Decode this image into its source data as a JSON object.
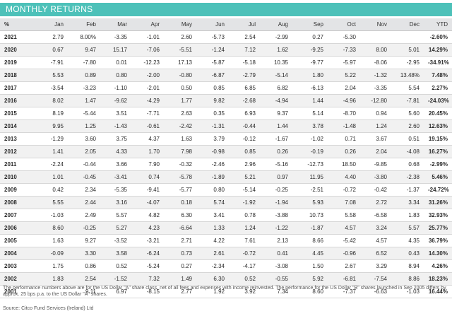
{
  "title": "MONTHLY RETURNS",
  "columns": [
    "%",
    "Jan",
    "Feb",
    "Mar",
    "Apr",
    "May",
    "Jun",
    "Jul",
    "Aug",
    "Sep",
    "Oct",
    "Nov",
    "Dec",
    "YTD"
  ],
  "rows": [
    [
      "2021",
      "2.79",
      "8.00%",
      "-3.35",
      "-1.01",
      "2.60",
      "-5.73",
      "2.54",
      "-2.99",
      "0.27",
      "-5.30",
      "",
      "",
      "-2.60%"
    ],
    [
      "2020",
      "0.67",
      "9.47",
      "15.17",
      "-7.06",
      "-5.51",
      "-1.24",
      "7.12",
      "1.62",
      "-9.25",
      "-7.33",
      "8.00",
      "5.01",
      "14.29%"
    ],
    [
      "2019",
      "-7.91",
      "-7.80",
      "0.01",
      "-12.23",
      "17.13",
      "-5.87",
      "-5.18",
      "10.35",
      "-9.77",
      "-5.97",
      "-8.06",
      "-2.95",
      "-34.91%"
    ],
    [
      "2018",
      "5.53",
      "0.89",
      "0.80",
      "-2.00",
      "-0.80",
      "-6.87",
      "-2.79",
      "-5.14",
      "1.80",
      "5.22",
      "-1.32",
      "13.48%",
      "7.48%"
    ],
    [
      "2017",
      "-3.54",
      "-3.23",
      "-1.10",
      "-2.01",
      "0.50",
      "0.85",
      "6.85",
      "6.82",
      "-6.13",
      "2.04",
      "-3.35",
      "5.54",
      "2.27%"
    ],
    [
      "2016",
      "8.02",
      "1.47",
      "-9.62",
      "-4.29",
      "1.77",
      "9.82",
      "-2.68",
      "-4.94",
      "1.44",
      "-4.96",
      "-12.80",
      "-7.81",
      "-24.03%"
    ],
    [
      "2015",
      "8.19",
      "-5.44",
      "3.51",
      "-7.71",
      "2.63",
      "0.35",
      "6.93",
      "9.37",
      "5.14",
      "-8.70",
      "0.94",
      "5.60",
      "20.45%"
    ],
    [
      "2014",
      "9.95",
      "1.25",
      "-1.43",
      "-0.61",
      "-2.42",
      "-1.31",
      "-0.44",
      "1.44",
      "3.78",
      "-1.48",
      "1.24",
      "2.60",
      "12.63%"
    ],
    [
      "2013",
      "-1.29",
      "3.60",
      "3.75",
      "4.37",
      "1.63",
      "3.79",
      "-0.12",
      "-1.67",
      "-1.02",
      "0.71",
      "3.67",
      "0.51",
      "19.15%"
    ],
    [
      "2012",
      "1.41",
      "2.05",
      "4.33",
      "1.70",
      "7.98",
      "-0.98",
      "0.85",
      "0.26",
      "-0.19",
      "0.26",
      "2.04",
      "-4.08",
      "16.27%"
    ],
    [
      "2011",
      "-2.24",
      "-0.44",
      "3.66",
      "7.90",
      "-0.32",
      "-2.46",
      "2.96",
      "-5.16",
      "-12.73",
      "18.50",
      "-9.85",
      "0.68",
      "-2.99%"
    ],
    [
      "2010",
      "1.01",
      "-0.45",
      "-3.41",
      "0.74",
      "-5.78",
      "-1.89",
      "5.21",
      "0.97",
      "11.95",
      "4.40",
      "-3.80",
      "-2.38",
      "5.46%"
    ],
    [
      "2009",
      "0.42",
      "2.34",
      "-5.35",
      "-9.41",
      "-5.77",
      "0.80",
      "-5.14",
      "-0.25",
      "-2.51",
      "-0.72",
      "-0.42",
      "-1.37",
      "-24.72%"
    ],
    [
      "2008",
      "5.55",
      "2.44",
      "3.16",
      "-4.07",
      "0.18",
      "5.74",
      "-1.92",
      "-1.94",
      "5.93",
      "7.08",
      "2.72",
      "3.34",
      "31.26%"
    ],
    [
      "2007",
      "-1.03",
      "2.49",
      "5.57",
      "4.82",
      "6.30",
      "3.41",
      "0.78",
      "-3.88",
      "10.73",
      "5.58",
      "-6.58",
      "1.83",
      "32.93%"
    ],
    [
      "2006",
      "8.60",
      "-0.25",
      "5.27",
      "4.23",
      "-6.64",
      "1.33",
      "1.24",
      "-1.22",
      "-1.87",
      "4.57",
      "3.24",
      "5.57",
      "25.77%"
    ],
    [
      "2005",
      "1.63",
      "9.27",
      "-3.52",
      "-3.21",
      "2.71",
      "4.22",
      "7.61",
      "2.13",
      "8.66",
      "-5.42",
      "4.57",
      "4.35",
      "36.79%"
    ],
    [
      "2004",
      "-0.09",
      "3.30",
      "3.58",
      "-6.24",
      "0.73",
      "2.61",
      "-0.72",
      "0.41",
      "4.45",
      "-0.96",
      "6.52",
      "0.43",
      "14.30%"
    ],
    [
      "2003",
      "1.75",
      "0.86",
      "0.52",
      "-5.24",
      "0.27",
      "-2.34",
      "-4.17",
      "-3.08",
      "1.50",
      "2.67",
      "3.29",
      "8.94",
      "4.26%"
    ],
    [
      "2002",
      "1.83",
      "2.54",
      "-1.52",
      "7.32",
      "1.49",
      "6.30",
      "0.52",
      "-0.55",
      "5.92",
      "-6.81",
      "-7.54",
      "8.86",
      "18.23%"
    ],
    [
      "2001",
      "",
      "9.11",
      "6.97",
      "-8.15",
      "2.77",
      "1.92",
      "3.92",
      "7.34",
      "8.60",
      "-7.37",
      "-6.63",
      "-1.03",
      "16.44%"
    ]
  ],
  "footnote": "The performance numbers above are for the US Dollar \"A\" share class, net of all fees and expenses with income reinvested. The performance for the US Dollar \"B\" shares launched in Sep 2005 differs by approx. 25 bps p.a. to the US Dollar \"A\" shares.",
  "source": "Source: Citco Fund Services (Ireland) Ltd"
}
